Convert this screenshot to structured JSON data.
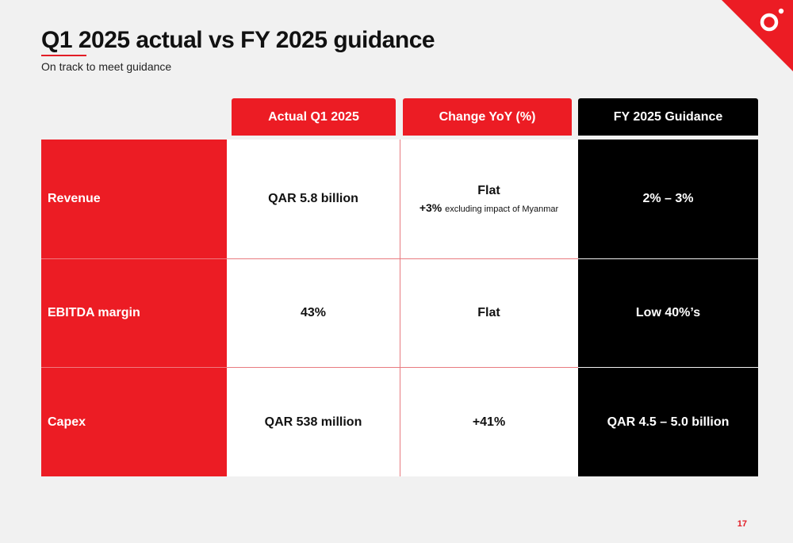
{
  "title": "Q1 2025 actual vs FY 2025 guidance",
  "subtitle": "On track to meet guidance",
  "columns": {
    "actual": "Actual Q1 2025",
    "change": "Change YoY (%)",
    "guidance": "FY 2025 Guidance"
  },
  "rows": [
    {
      "label": "Revenue",
      "actual": "QAR 5.8 billion",
      "change": "Flat",
      "change_note_value": "+3%",
      "change_note_text": "excluding impact of Myanmar",
      "guidance": "2% – 3%"
    },
    {
      "label": "EBITDA margin",
      "actual": "43%",
      "change": "Flat",
      "guidance": "Low 40%’s"
    },
    {
      "label": "Capex",
      "actual": "QAR 538 million",
      "change": "+41%",
      "guidance": "QAR 4.5 – 5.0 billion"
    }
  ],
  "page_number": "17",
  "colors": {
    "brand_red": "#ec1c24",
    "black": "#000000",
    "background": "#f1f1f1"
  },
  "icons": {
    "corner_logo": "ooredoo-logo-icon"
  }
}
